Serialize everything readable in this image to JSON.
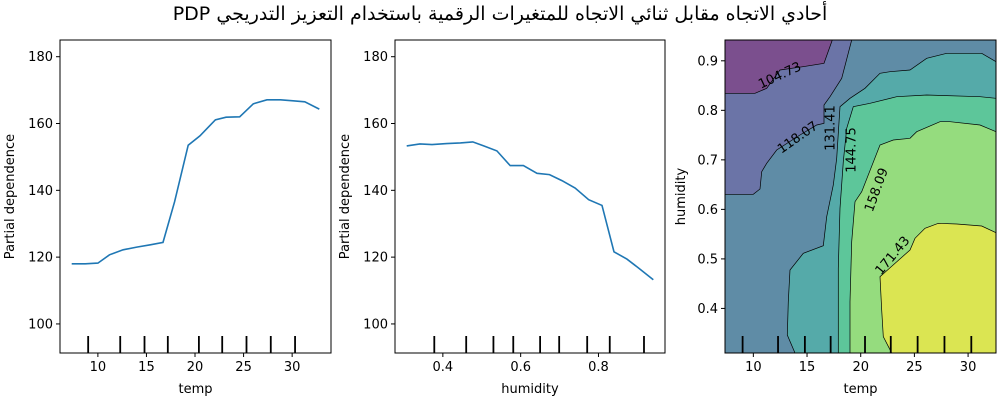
{
  "title": "PDP أحادي الاتجاه مقابل ثنائي الاتجاه للمتغيرات الرقمية باستخدام التعزيز التدريجي",
  "chart_data": [
    {
      "type": "line",
      "xlabel": "temp",
      "ylabel": "Partial dependence",
      "xlim": [
        6.1,
        34
      ],
      "ylim": [
        91.3,
        185
      ],
      "xticks": [
        10,
        15,
        20,
        25,
        30
      ],
      "yticks": [
        100,
        120,
        140,
        160,
        180
      ],
      "x": [
        7.3,
        8.7,
        10.0,
        11.2,
        12.6,
        14.0,
        15.4,
        16.7,
        17.9,
        19.3,
        20.5,
        22.1,
        23.2,
        24.6,
        26.0,
        27.4,
        28.8,
        30.1,
        31.3,
        32.8
      ],
      "y": [
        118.0,
        118.0,
        118.2,
        120.7,
        122.2,
        123.0,
        123.7,
        124.4,
        136.6,
        153.5,
        156.3,
        161.1,
        161.9,
        162.0,
        165.9,
        167.1,
        167.1,
        166.8,
        166.5,
        164.3
      ],
      "deciles": [
        9.0,
        12.3,
        14.8,
        17.2,
        20.4,
        22.8,
        25.3,
        27.8,
        30.3
      ],
      "color": "#1f77b4"
    },
    {
      "type": "line",
      "xlabel": "humidity",
      "ylabel": "Partial dependence",
      "xlim": [
        0.277,
        0.971
      ],
      "ylim": [
        91.3,
        185
      ],
      "xticks": [
        0.4,
        0.6,
        0.8
      ],
      "yticks": [
        100,
        120,
        140,
        160,
        180
      ],
      "x": [
        0.307,
        0.341,
        0.372,
        0.41,
        0.445,
        0.477,
        0.505,
        0.539,
        0.573,
        0.607,
        0.642,
        0.674,
        0.706,
        0.74,
        0.775,
        0.809,
        0.84,
        0.873,
        0.907,
        0.941
      ],
      "y": [
        153.3,
        153.9,
        153.7,
        154.0,
        154.2,
        154.5,
        153.3,
        151.8,
        147.4,
        147.4,
        145.1,
        144.7,
        142.9,
        140.7,
        137.2,
        135.5,
        121.6,
        119.4,
        116.4,
        113.2
      ],
      "deciles": [
        0.378,
        0.46,
        0.53,
        0.581,
        0.65,
        0.699,
        0.771,
        0.829,
        0.917
      ],
      "color": "#1f77b4"
    },
    {
      "type": "contour",
      "xlabel": "temp",
      "ylabel": "humidity",
      "xlim": [
        7.36,
        32.6
      ],
      "ylim": [
        0.31,
        0.942
      ],
      "xticks": [
        10,
        15,
        20,
        25,
        30
      ],
      "yticks": [
        0.4,
        0.5,
        0.6,
        0.7,
        0.8,
        0.9
      ],
      "levels": [
        "104.73",
        "118.07",
        "131.41",
        "144.75",
        "158.09",
        "171.43"
      ],
      "band_colors": [
        "#7b4f8e",
        "#6b74a7",
        "#5f8ca6",
        "#55aaa9",
        "#5dc69a",
        "#95dc7e",
        "#dbe552"
      ],
      "deciles": [
        9.0,
        12.3,
        14.8,
        17.2,
        20.4,
        22.8,
        25.3,
        27.8,
        30.3
      ]
    }
  ]
}
